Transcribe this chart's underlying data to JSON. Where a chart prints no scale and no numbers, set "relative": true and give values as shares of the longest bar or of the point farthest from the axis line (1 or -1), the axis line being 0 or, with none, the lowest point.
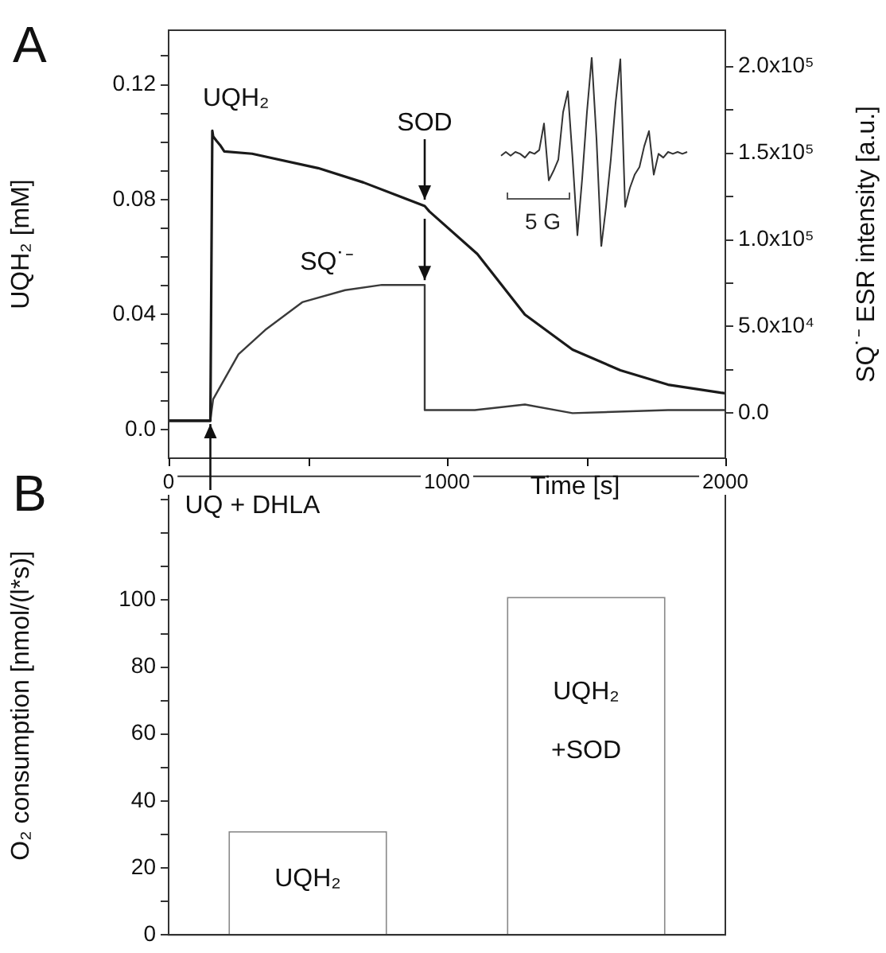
{
  "chart_data": [
    {
      "type": "line",
      "xlabel": "Time [s]",
      "ylabel": "UQH₂ [mM]",
      "y2label": "SQ˙⁻ ESR intensity [a.u.]",
      "xlim": [
        0,
        2000
      ],
      "xticks": [
        0,
        {
          "value": 500,
          "label": null
        },
        1000,
        {
          "value": 1500,
          "label": null
        },
        2000
      ],
      "ylim": [
        -0.01,
        0.139
      ],
      "yticks": [
        {
          "value": 0,
          "label": "0.0"
        },
        {
          "value": 0.01,
          "label": null
        },
        {
          "value": 0.02,
          "label": null
        },
        {
          "value": 0.03,
          "label": null
        },
        0.04,
        {
          "value": 0.05,
          "label": null
        },
        {
          "value": 0.06,
          "label": null
        },
        {
          "value": 0.07,
          "label": null
        },
        0.08,
        {
          "value": 0.09,
          "label": null
        },
        {
          "value": 0.1,
          "label": null
        },
        {
          "value": 0.11,
          "label": null
        },
        0.12,
        {
          "value": 0.13,
          "label": null
        }
      ],
      "y2lim": [
        -26000,
        221000
      ],
      "y2ticks": [
        {
          "value": 0,
          "label": "0.0"
        },
        {
          "value": 25000,
          "label": null
        },
        {
          "value": 50000,
          "label": "5.0x10⁴"
        },
        {
          "value": 75000,
          "label": null
        },
        {
          "value": 100000,
          "label": "1.0x10⁵"
        },
        {
          "value": 125000,
          "label": null
        },
        {
          "value": 150000,
          "label": "1.5x10⁵"
        },
        {
          "value": 175000,
          "label": null
        },
        {
          "value": 200000,
          "label": "2.0x10⁵"
        }
      ],
      "series": [
        {
          "name": "UQH₂",
          "color": "#1a1a1a",
          "x": [
            0,
            150,
            157,
            160,
            172,
            185,
            200,
            300,
            537,
            700,
            920,
            937,
            1109,
            1280,
            1451,
            1623,
            1794,
            1983,
            2000
          ],
          "values": [
            0.003,
            0.003,
            0.104,
            0.102,
            0.1005,
            0.099,
            0.0968,
            0.096,
            0.091,
            0.086,
            0.0778,
            0.0759,
            0.0611,
            0.04,
            0.0278,
            0.0206,
            0.0156,
            0.0128,
            0.0126
          ]
        },
        {
          "name": "SQ˙⁻",
          "color": "#3a3a3a",
          "axis": "y2",
          "x": [
            0,
            150,
            160,
            251,
            347,
            480,
            634,
            766,
            920,
            920,
            1100,
            1280,
            1451,
            1794,
            2000
          ],
          "values": [
            -4000,
            -4000,
            8000,
            34000,
            48000,
            64000,
            71000,
            74000,
            74000,
            1800,
            1800,
            5000,
            0,
            1800,
            1800
          ]
        }
      ],
      "annotations": [
        "A",
        {
          "text": "SOD",
          "x": 920,
          "y": 0.0778
        },
        {
          "text": "UQ + DHLA",
          "x": 150,
          "y": 0.003
        }
      ]
    },
    {
      "type": "bar",
      "ylabel": "O₂ consumption [nmol/(l*s)]",
      "categories": [
        "UQH₂",
        "UQH₂ +SOD"
      ],
      "values": [
        31,
        101
      ],
      "color": "#ffffff",
      "ylim": [
        0,
        137
      ],
      "yticks": [
        0,
        {
          "value": 10,
          "label": null
        },
        20,
        {
          "value": 30,
          "label": null
        },
        40,
        {
          "value": 50,
          "label": null
        },
        60,
        {
          "value": 70,
          "label": null
        },
        80,
        {
          "value": 90,
          "label": null
        },
        100,
        {
          "value": 110,
          "label": null
        },
        {
          "value": 120,
          "label": null
        },
        {
          "value": 130,
          "label": null
        }
      ],
      "annotations": [
        "B"
      ]
    },
    {
      "type": "line",
      "relative": true,
      "color": "#333333",
      "categories": [
        null,
        null,
        null,
        null,
        null,
        null,
        null,
        null,
        null,
        null,
        null,
        null,
        null,
        null,
        null,
        null,
        null,
        null,
        null,
        null,
        null,
        null,
        null,
        null,
        null,
        null,
        null,
        null,
        null,
        null,
        null,
        null,
        null,
        null,
        null,
        null,
        null,
        null,
        null,
        null
      ],
      "values": [
        0.48,
        0.5,
        0.48,
        0.5,
        0.49,
        0.47,
        0.5,
        0.49,
        0.51,
        0.65,
        0.35,
        0.4,
        0.46,
        0.71,
        0.82,
        0.46,
        0.06,
        0.36,
        0.71,
        1,
        0.57,
        0,
        0.21,
        0.46,
        0.76,
        0.99,
        0.21,
        0.31,
        0.38,
        0.42,
        0.53,
        0.61,
        0.38,
        0.49,
        0.47,
        0.5,
        0.49,
        0.5,
        0.49,
        0.5
      ],
      "annotations": [
        "5 G"
      ]
    }
  ]
}
